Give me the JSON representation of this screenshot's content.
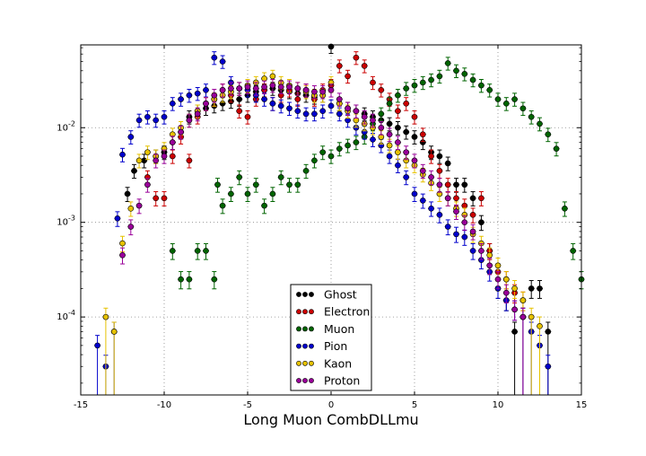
{
  "chart_data": {
    "type": "scatter",
    "title": "",
    "xlabel": "Long Muon CombDLLmu",
    "ylabel": "",
    "xlim": [
      -15,
      15
    ],
    "ylim": [
      1.5e-05,
      0.075
    ],
    "yscale": "log",
    "grid": true,
    "legend_position": "lower-center",
    "x_ticks": [
      -15,
      -10,
      -5,
      0,
      5,
      10,
      15
    ],
    "x_tick_labels": [
      "-15",
      "-10",
      "-5",
      "0",
      "5",
      "10",
      "15"
    ],
    "y_ticks": [
      0.0001,
      0.001,
      0.01
    ],
    "y_tick_labels": [
      "10^-4",
      "10^-3",
      "10^-2"
    ],
    "series": [
      {
        "name": "Ghost",
        "color": "#000000",
        "points": [
          [
            -12.2,
            0.002
          ],
          [
            -11.8,
            0.0035
          ],
          [
            -11.2,
            0.0045
          ],
          [
            -10.5,
            0.005
          ],
          [
            -10,
            0.0055
          ],
          [
            -9.5,
            0.007
          ],
          [
            -9,
            0.009
          ],
          [
            -8.5,
            0.013
          ],
          [
            -8,
            0.015
          ],
          [
            -7.5,
            0.016
          ],
          [
            -7,
            0.017
          ],
          [
            -6.5,
            0.018
          ],
          [
            -6,
            0.019
          ],
          [
            -5.5,
            0.02
          ],
          [
            -5,
            0.022
          ],
          [
            -4.5,
            0.024
          ],
          [
            -4,
            0.025
          ],
          [
            -3.5,
            0.026
          ],
          [
            -3,
            0.025
          ],
          [
            -2.5,
            0.024
          ],
          [
            -2,
            0.023
          ],
          [
            -1.5,
            0.022
          ],
          [
            -1,
            0.021
          ],
          [
            -0.5,
            0.022
          ],
          [
            0,
            0.072
          ],
          [
            0.5,
            0.018
          ],
          [
            1,
            0.016
          ],
          [
            1.5,
            0.015
          ],
          [
            2,
            0.014
          ],
          [
            2.5,
            0.013
          ],
          [
            3,
            0.012
          ],
          [
            3.5,
            0.011
          ],
          [
            4,
            0.01
          ],
          [
            4.5,
            0.009
          ],
          [
            5,
            0.008
          ],
          [
            5.5,
            0.007
          ],
          [
            6,
            0.0055
          ],
          [
            6.5,
            0.005
          ],
          [
            7,
            0.0042
          ],
          [
            7.5,
            0.0025
          ],
          [
            8,
            0.0025
          ],
          [
            8.5,
            0.0018
          ],
          [
            9,
            0.001
          ],
          [
            9.5,
            0.0005
          ],
          [
            10,
            0.0002
          ],
          [
            10.5,
            0.00015
          ],
          [
            11,
            7e-05
          ],
          [
            11.5,
            0.0001
          ],
          [
            12,
            0.0002
          ],
          [
            12.5,
            0.0002
          ],
          [
            13,
            7e-05
          ]
        ]
      },
      {
        "name": "Electron",
        "color": "#cc0000",
        "points": [
          [
            -11,
            0.003
          ],
          [
            -10.5,
            0.0018
          ],
          [
            -10,
            0.0018
          ],
          [
            -9.5,
            0.005
          ],
          [
            -9,
            0.008
          ],
          [
            -8.5,
            0.0045
          ],
          [
            -8,
            0.013
          ],
          [
            -7.5,
            0.018
          ],
          [
            -7,
            0.02
          ],
          [
            -6.5,
            0.025
          ],
          [
            -6,
            0.022
          ],
          [
            -5.5,
            0.015
          ],
          [
            -5,
            0.013
          ],
          [
            -4.5,
            0.02
          ],
          [
            -4,
            0.025
          ],
          [
            -3.5,
            0.018
          ],
          [
            -3,
            0.022
          ],
          [
            -2.5,
            0.025
          ],
          [
            -2,
            0.02
          ],
          [
            -1.5,
            0.025
          ],
          [
            -1,
            0.02
          ],
          [
            -0.5,
            0.025
          ],
          [
            0,
            0.028
          ],
          [
            0.5,
            0.045
          ],
          [
            1,
            0.035
          ],
          [
            1.5,
            0.055
          ],
          [
            2,
            0.045
          ],
          [
            2.5,
            0.03
          ],
          [
            3,
            0.025
          ],
          [
            3.5,
            0.02
          ],
          [
            4,
            0.015
          ],
          [
            4.5,
            0.018
          ],
          [
            5,
            0.013
          ],
          [
            5.5,
            0.0085
          ],
          [
            6,
            0.005
          ],
          [
            6.5,
            0.0035
          ],
          [
            7,
            0.0025
          ],
          [
            7.5,
            0.0018
          ],
          [
            8,
            0.0015
          ],
          [
            8.5,
            0.0012
          ],
          [
            9,
            0.0018
          ],
          [
            9.5,
            0.0005
          ],
          [
            10,
            0.0003
          ],
          [
            10.5,
            0.00025
          ],
          [
            11,
            0.00018
          ],
          [
            11.5,
            0.00015
          ]
        ]
      },
      {
        "name": "Muon",
        "color": "#006400",
        "points": [
          [
            -9.5,
            0.0005
          ],
          [
            -9,
            0.00025
          ],
          [
            -8.5,
            0.00025
          ],
          [
            -8,
            0.0005
          ],
          [
            -7.5,
            0.0005
          ],
          [
            -7,
            0.00025
          ],
          [
            -6.8,
            0.0025
          ],
          [
            -6.5,
            0.0015
          ],
          [
            -6,
            0.002
          ],
          [
            -5.5,
            0.003
          ],
          [
            -5,
            0.002
          ],
          [
            -4.5,
            0.0025
          ],
          [
            -4,
            0.0015
          ],
          [
            -3.5,
            0.002
          ],
          [
            -3,
            0.003
          ],
          [
            -2.5,
            0.0025
          ],
          [
            -2,
            0.0025
          ],
          [
            -1.5,
            0.0035
          ],
          [
            -1,
            0.0045
          ],
          [
            -0.5,
            0.0055
          ],
          [
            0,
            0.005
          ],
          [
            0.5,
            0.006
          ],
          [
            1,
            0.0065
          ],
          [
            1.5,
            0.007
          ],
          [
            2,
            0.008
          ],
          [
            2.5,
            0.011
          ],
          [
            3,
            0.014
          ],
          [
            3.5,
            0.018
          ],
          [
            4,
            0.022
          ],
          [
            4.5,
            0.026
          ],
          [
            5,
            0.028
          ],
          [
            5.5,
            0.03
          ],
          [
            6,
            0.032
          ],
          [
            6.5,
            0.035
          ],
          [
            7,
            0.048
          ],
          [
            7.5,
            0.04
          ],
          [
            8,
            0.037
          ],
          [
            8.5,
            0.032
          ],
          [
            9,
            0.028
          ],
          [
            9.5,
            0.025
          ],
          [
            10,
            0.02
          ],
          [
            10.5,
            0.018
          ],
          [
            11,
            0.02
          ],
          [
            11.5,
            0.016
          ],
          [
            12,
            0.013
          ],
          [
            12.5,
            0.011
          ],
          [
            13,
            0.0085
          ],
          [
            13.5,
            0.006
          ],
          [
            14,
            0.0014
          ],
          [
            14.5,
            0.0005
          ],
          [
            15,
            0.00025
          ]
        ]
      },
      {
        "name": "Pion",
        "color": "#0000cc",
        "points": [
          [
            -14,
            5e-05
          ],
          [
            -13.5,
            3e-05
          ],
          [
            -13,
            7e-05
          ],
          [
            -12.8,
            0.0011
          ],
          [
            -12.5,
            0.0052
          ],
          [
            -12,
            0.008
          ],
          [
            -11.5,
            0.012
          ],
          [
            -11,
            0.013
          ],
          [
            -10.5,
            0.012
          ],
          [
            -10,
            0.013
          ],
          [
            -9.5,
            0.018
          ],
          [
            -9,
            0.02
          ],
          [
            -8.5,
            0.022
          ],
          [
            -8,
            0.023
          ],
          [
            -7.5,
            0.025
          ],
          [
            -7,
            0.055
          ],
          [
            -6.5,
            0.05
          ],
          [
            -6,
            0.03
          ],
          [
            -5.5,
            0.026
          ],
          [
            -5,
            0.025
          ],
          [
            -4.5,
            0.022
          ],
          [
            -4,
            0.02
          ],
          [
            -3.5,
            0.018
          ],
          [
            -3,
            0.017
          ],
          [
            -2.5,
            0.016
          ],
          [
            -2,
            0.015
          ],
          [
            -1.5,
            0.014
          ],
          [
            -1,
            0.014
          ],
          [
            -0.5,
            0.015
          ],
          [
            0,
            0.017
          ],
          [
            0.5,
            0.014
          ],
          [
            1,
            0.012
          ],
          [
            1.5,
            0.01
          ],
          [
            2,
            0.009
          ],
          [
            2.5,
            0.0075
          ],
          [
            3,
            0.0065
          ],
          [
            3.5,
            0.005
          ],
          [
            4,
            0.004
          ],
          [
            4.5,
            0.003
          ],
          [
            5,
            0.002
          ],
          [
            5.5,
            0.0017
          ],
          [
            6,
            0.0014
          ],
          [
            6.5,
            0.0012
          ],
          [
            7,
            0.0009
          ],
          [
            7.5,
            0.00075
          ],
          [
            8,
            0.0007
          ],
          [
            8.5,
            0.0005
          ],
          [
            9,
            0.0004
          ],
          [
            9.5,
            0.0003
          ],
          [
            10,
            0.0002
          ],
          [
            10.5,
            0.00015
          ],
          [
            11,
            0.00012
          ],
          [
            11.5,
            0.0001
          ],
          [
            12,
            7e-05
          ],
          [
            12.5,
            5e-05
          ],
          [
            13,
            3e-05
          ]
        ]
      },
      {
        "name": "Kaon",
        "color": "#e6c200",
        "points": [
          [
            -13.5,
            0.0001
          ],
          [
            -13,
            7e-05
          ],
          [
            -12.5,
            0.0006
          ],
          [
            -12,
            0.0014
          ],
          [
            -11.5,
            0.0045
          ],
          [
            -11,
            0.0055
          ],
          [
            -10.5,
            0.005
          ],
          [
            -10,
            0.006
          ],
          [
            -9.5,
            0.0085
          ],
          [
            -9,
            0.01
          ],
          [
            -8.5,
            0.012
          ],
          [
            -8,
            0.015
          ],
          [
            -7.5,
            0.018
          ],
          [
            -7,
            0.02
          ],
          [
            -6.5,
            0.022
          ],
          [
            -6,
            0.024
          ],
          [
            -5.5,
            0.026
          ],
          [
            -5,
            0.028
          ],
          [
            -4.5,
            0.03
          ],
          [
            -4,
            0.033
          ],
          [
            -3.5,
            0.035
          ],
          [
            -3,
            0.03
          ],
          [
            -2.5,
            0.028
          ],
          [
            -2,
            0.026
          ],
          [
            -1.5,
            0.024
          ],
          [
            -1,
            0.022
          ],
          [
            -0.5,
            0.022
          ],
          [
            0,
            0.03
          ],
          [
            0.5,
            0.018
          ],
          [
            1,
            0.015
          ],
          [
            1.5,
            0.012
          ],
          [
            2,
            0.011
          ],
          [
            2.5,
            0.01
          ],
          [
            3,
            0.008
          ],
          [
            3.5,
            0.0065
          ],
          [
            4,
            0.0055
          ],
          [
            4.5,
            0.0045
          ],
          [
            5,
            0.004
          ],
          [
            5.5,
            0.0032
          ],
          [
            6,
            0.0026
          ],
          [
            6.5,
            0.002
          ],
          [
            7,
            0.0018
          ],
          [
            7.5,
            0.0014
          ],
          [
            8,
            0.0012
          ],
          [
            8.5,
            0.00075
          ],
          [
            9,
            0.0006
          ],
          [
            9.5,
            0.00045
          ],
          [
            10,
            0.00035
          ],
          [
            10.5,
            0.00025
          ],
          [
            11,
            0.0002
          ],
          [
            11.5,
            0.00015
          ],
          [
            12,
            0.0001
          ],
          [
            12.5,
            8e-05
          ]
        ]
      },
      {
        "name": "Proton",
        "color": "#990099",
        "points": [
          [
            -12.5,
            0.00045
          ],
          [
            -12,
            0.0009
          ],
          [
            -11.5,
            0.0015
          ],
          [
            -11,
            0.0025
          ],
          [
            -10.5,
            0.0045
          ],
          [
            -10,
            0.005
          ],
          [
            -9.5,
            0.007
          ],
          [
            -9,
            0.009
          ],
          [
            -8.5,
            0.012
          ],
          [
            -8,
            0.014
          ],
          [
            -7.5,
            0.018
          ],
          [
            -7,
            0.022
          ],
          [
            -6.5,
            0.025
          ],
          [
            -6,
            0.026
          ],
          [
            -5.5,
            0.026
          ],
          [
            -5,
            0.027
          ],
          [
            -4.5,
            0.026
          ],
          [
            -4,
            0.027
          ],
          [
            -3.5,
            0.028
          ],
          [
            -3,
            0.027
          ],
          [
            -2.5,
            0.027
          ],
          [
            -2,
            0.026
          ],
          [
            -1.5,
            0.025
          ],
          [
            -1,
            0.024
          ],
          [
            -0.5,
            0.024
          ],
          [
            0,
            0.025
          ],
          [
            0.5,
            0.02
          ],
          [
            1,
            0.016
          ],
          [
            1.5,
            0.015
          ],
          [
            2,
            0.013
          ],
          [
            2.5,
            0.012
          ],
          [
            3,
            0.01
          ],
          [
            3.5,
            0.0085
          ],
          [
            4,
            0.007
          ],
          [
            4.5,
            0.0055
          ],
          [
            5,
            0.0045
          ],
          [
            5.5,
            0.0035
          ],
          [
            6,
            0.003
          ],
          [
            6.5,
            0.0025
          ],
          [
            7,
            0.0018
          ],
          [
            7.5,
            0.0013
          ],
          [
            8,
            0.001
          ],
          [
            8.5,
            0.0008
          ],
          [
            9,
            0.0005
          ],
          [
            9.5,
            0.00035
          ],
          [
            10,
            0.00025
          ],
          [
            10.5,
            0.00018
          ],
          [
            11,
            0.00012
          ],
          [
            11.5,
            0.0001
          ]
        ]
      }
    ]
  }
}
